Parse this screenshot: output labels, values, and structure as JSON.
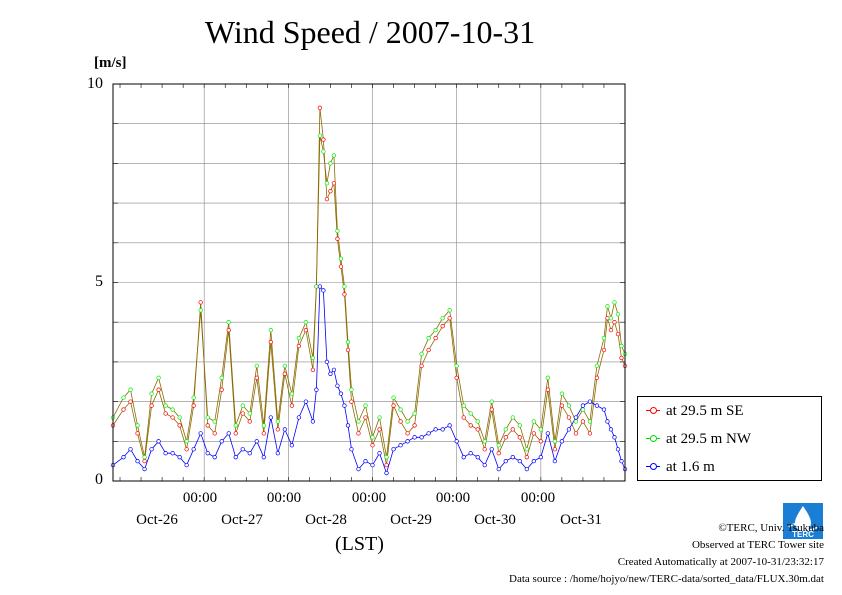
{
  "chart_data": {
    "type": "line",
    "title": "Wind Speed / 2007-10-31",
    "ylabel": "[m/s]",
    "xlabel": "(LST)",
    "ylim": [
      0,
      10
    ],
    "yticks": [
      "0",
      "5",
      "10"
    ],
    "xlim_hours": [
      0,
      146
    ],
    "x_time_ticks": [
      "00:00",
      "00:00",
      "00:00",
      "00:00",
      "00:00"
    ],
    "x_date_labels": [
      "Oct-26",
      "Oct-27",
      "Oct-28",
      "Oct-29",
      "Oct-30",
      "Oct-31"
    ],
    "grid": true,
    "legend_placement": "right",
    "series": [
      {
        "name": "at 29.5 m SE",
        "color": "#ff0000",
        "line_color": "#8b6a00",
        "points": [
          [
            0,
            1.4
          ],
          [
            3,
            1.8
          ],
          [
            5,
            2.0
          ],
          [
            7,
            1.2
          ],
          [
            9,
            0.5
          ],
          [
            11,
            1.9
          ],
          [
            13,
            2.3
          ],
          [
            15,
            1.7
          ],
          [
            17,
            1.6
          ],
          [
            19,
            1.4
          ],
          [
            21,
            0.8
          ],
          [
            23,
            1.9
          ],
          [
            25,
            4.5
          ],
          [
            27,
            1.4
          ],
          [
            29,
            1.2
          ],
          [
            31,
            2.3
          ],
          [
            33,
            3.8
          ],
          [
            35,
            1.2
          ],
          [
            37,
            1.7
          ],
          [
            39,
            1.5
          ],
          [
            41,
            2.6
          ],
          [
            43,
            1.2
          ],
          [
            45,
            3.5
          ],
          [
            47,
            1.3
          ],
          [
            49,
            2.7
          ],
          [
            51,
            1.9
          ],
          [
            53,
            3.4
          ],
          [
            55,
            3.8
          ],
          [
            57,
            2.8
          ],
          [
            58,
            4.9
          ],
          [
            59,
            9.4
          ],
          [
            60,
            8.6
          ],
          [
            61,
            7.1
          ],
          [
            62,
            7.3
          ],
          [
            63,
            7.5
          ],
          [
            64,
            6.1
          ],
          [
            65,
            5.4
          ],
          [
            66,
            4.7
          ],
          [
            67,
            3.3
          ],
          [
            68,
            2.0
          ],
          [
            70,
            1.2
          ],
          [
            72,
            1.6
          ],
          [
            74,
            0.9
          ],
          [
            76,
            1.3
          ],
          [
            78,
            0.4
          ],
          [
            80,
            1.9
          ],
          [
            82,
            1.5
          ],
          [
            84,
            1.2
          ],
          [
            86,
            1.4
          ],
          [
            88,
            2.9
          ],
          [
            90,
            3.3
          ],
          [
            92,
            3.6
          ],
          [
            94,
            3.9
          ],
          [
            96,
            4.1
          ],
          [
            98,
            2.6
          ],
          [
            100,
            1.6
          ],
          [
            102,
            1.4
          ],
          [
            104,
            1.3
          ],
          [
            106,
            0.8
          ],
          [
            108,
            1.8
          ],
          [
            110,
            0.7
          ],
          [
            112,
            1.1
          ],
          [
            114,
            1.3
          ],
          [
            116,
            1.1
          ],
          [
            118,
            0.6
          ],
          [
            120,
            1.2
          ],
          [
            122,
            1.0
          ],
          [
            124,
            2.3
          ],
          [
            126,
            0.8
          ],
          [
            128,
            1.9
          ],
          [
            130,
            1.6
          ],
          [
            132,
            1.2
          ],
          [
            134,
            1.5
          ],
          [
            136,
            1.2
          ],
          [
            138,
            2.6
          ],
          [
            140,
            3.3
          ],
          [
            141,
            4.1
          ],
          [
            142,
            3.8
          ],
          [
            143,
            4.0
          ],
          [
            144,
            3.7
          ],
          [
            145,
            3.1
          ],
          [
            146,
            2.9
          ]
        ]
      },
      {
        "name": "at 29.5 m NW",
        "color": "#00ee00",
        "line_color": "#8b6a00",
        "points": [
          [
            0,
            1.6
          ],
          [
            3,
            2.1
          ],
          [
            5,
            2.3
          ],
          [
            7,
            1.4
          ],
          [
            9,
            0.6
          ],
          [
            11,
            2.2
          ],
          [
            13,
            2.6
          ],
          [
            15,
            1.9
          ],
          [
            17,
            1.8
          ],
          [
            19,
            1.6
          ],
          [
            21,
            1.0
          ],
          [
            23,
            2.1
          ],
          [
            25,
            4.3
          ],
          [
            27,
            1.6
          ],
          [
            29,
            1.5
          ],
          [
            31,
            2.6
          ],
          [
            33,
            4.0
          ],
          [
            35,
            1.4
          ],
          [
            37,
            1.9
          ],
          [
            39,
            1.7
          ],
          [
            41,
            2.9
          ],
          [
            43,
            1.4
          ],
          [
            45,
            3.8
          ],
          [
            47,
            1.5
          ],
          [
            49,
            2.9
          ],
          [
            51,
            2.2
          ],
          [
            53,
            3.6
          ],
          [
            55,
            4.0
          ],
          [
            57,
            3.1
          ],
          [
            58,
            4.9
          ],
          [
            59,
            8.7
          ],
          [
            60,
            8.3
          ],
          [
            61,
            7.5
          ],
          [
            62,
            8.0
          ],
          [
            63,
            8.2
          ],
          [
            64,
            6.3
          ],
          [
            65,
            5.6
          ],
          [
            66,
            4.9
          ],
          [
            67,
            3.5
          ],
          [
            68,
            2.3
          ],
          [
            70,
            1.5
          ],
          [
            72,
            1.9
          ],
          [
            74,
            1.1
          ],
          [
            76,
            1.6
          ],
          [
            78,
            0.6
          ],
          [
            80,
            2.1
          ],
          [
            82,
            1.8
          ],
          [
            84,
            1.5
          ],
          [
            86,
            1.7
          ],
          [
            88,
            3.2
          ],
          [
            90,
            3.6
          ],
          [
            92,
            3.8
          ],
          [
            94,
            4.1
          ],
          [
            96,
            4.3
          ],
          [
            98,
            2.9
          ],
          [
            100,
            1.9
          ],
          [
            102,
            1.7
          ],
          [
            104,
            1.5
          ],
          [
            106,
            1.0
          ],
          [
            108,
            2.0
          ],
          [
            110,
            0.9
          ],
          [
            112,
            1.3
          ],
          [
            114,
            1.6
          ],
          [
            116,
            1.4
          ],
          [
            118,
            0.8
          ],
          [
            120,
            1.5
          ],
          [
            122,
            1.3
          ],
          [
            124,
            2.6
          ],
          [
            126,
            1.0
          ],
          [
            128,
            2.2
          ],
          [
            130,
            1.9
          ],
          [
            132,
            1.5
          ],
          [
            134,
            1.8
          ],
          [
            136,
            1.5
          ],
          [
            138,
            2.9
          ],
          [
            140,
            3.6
          ],
          [
            141,
            4.4
          ],
          [
            142,
            4.1
          ],
          [
            143,
            4.5
          ],
          [
            144,
            4.2
          ],
          [
            145,
            3.4
          ],
          [
            146,
            3.2
          ]
        ]
      },
      {
        "name": "at 1.6 m",
        "color": "#0000ff",
        "line_color": "#0000ff",
        "points": [
          [
            0,
            0.4
          ],
          [
            3,
            0.6
          ],
          [
            5,
            0.8
          ],
          [
            7,
            0.5
          ],
          [
            9,
            0.3
          ],
          [
            11,
            0.8
          ],
          [
            13,
            1.0
          ],
          [
            15,
            0.7
          ],
          [
            17,
            0.7
          ],
          [
            19,
            0.6
          ],
          [
            21,
            0.4
          ],
          [
            23,
            0.8
          ],
          [
            25,
            1.2
          ],
          [
            27,
            0.7
          ],
          [
            29,
            0.6
          ],
          [
            31,
            1.0
          ],
          [
            33,
            1.2
          ],
          [
            35,
            0.6
          ],
          [
            37,
            0.8
          ],
          [
            39,
            0.7
          ],
          [
            41,
            1.0
          ],
          [
            43,
            0.6
          ],
          [
            45,
            1.6
          ],
          [
            47,
            0.7
          ],
          [
            49,
            1.3
          ],
          [
            51,
            0.9
          ],
          [
            53,
            1.6
          ],
          [
            55,
            2.0
          ],
          [
            57,
            1.5
          ],
          [
            58,
            2.3
          ],
          [
            59,
            4.9
          ],
          [
            60,
            4.8
          ],
          [
            61,
            3.0
          ],
          [
            62,
            2.7
          ],
          [
            63,
            2.8
          ],
          [
            64,
            2.4
          ],
          [
            65,
            2.2
          ],
          [
            66,
            1.9
          ],
          [
            67,
            1.4
          ],
          [
            68,
            0.8
          ],
          [
            70,
            0.3
          ],
          [
            72,
            0.5
          ],
          [
            74,
            0.4
          ],
          [
            76,
            0.7
          ],
          [
            78,
            0.2
          ],
          [
            80,
            0.8
          ],
          [
            82,
            0.9
          ],
          [
            84,
            1.0
          ],
          [
            86,
            1.1
          ],
          [
            88,
            1.1
          ],
          [
            90,
            1.2
          ],
          [
            92,
            1.3
          ],
          [
            94,
            1.3
          ],
          [
            96,
            1.4
          ],
          [
            98,
            1.0
          ],
          [
            100,
            0.6
          ],
          [
            102,
            0.7
          ],
          [
            104,
            0.6
          ],
          [
            106,
            0.4
          ],
          [
            108,
            0.8
          ],
          [
            110,
            0.3
          ],
          [
            112,
            0.5
          ],
          [
            114,
            0.6
          ],
          [
            116,
            0.5
          ],
          [
            118,
            0.3
          ],
          [
            120,
            0.5
          ],
          [
            122,
            0.6
          ],
          [
            124,
            1.2
          ],
          [
            126,
            0.5
          ],
          [
            128,
            1.0
          ],
          [
            130,
            1.3
          ],
          [
            132,
            1.6
          ],
          [
            134,
            1.9
          ],
          [
            136,
            2.0
          ],
          [
            138,
            1.9
          ],
          [
            140,
            1.8
          ],
          [
            141,
            1.5
          ],
          [
            142,
            1.3
          ],
          [
            143,
            1.1
          ],
          [
            144,
            0.8
          ],
          [
            145,
            0.5
          ],
          [
            146,
            0.3
          ]
        ]
      }
    ]
  },
  "footer": {
    "copyright": "©TERC, Univ. Tsukuba",
    "observed": "Observed at TERC Tower site",
    "created": "Created Automatically at 2007-10-31/23:32:17",
    "source": "Data source : /home/hojyo/new/TERC-data/sorted_data/FLUX.30m.dat"
  },
  "logo": {
    "text": "TERC",
    "color": "#1a7fd4"
  }
}
